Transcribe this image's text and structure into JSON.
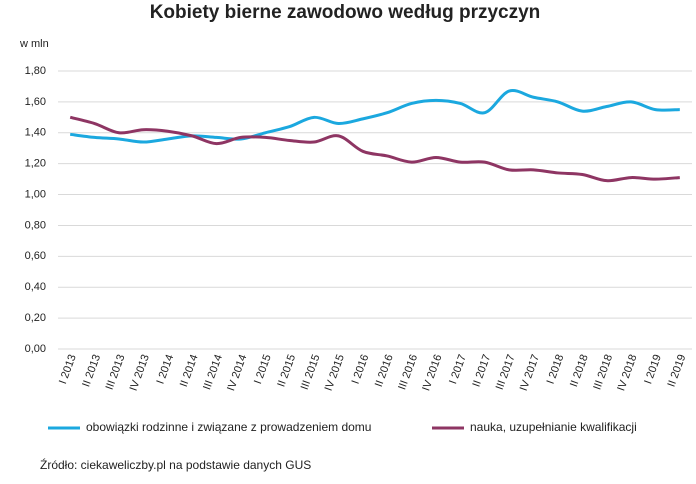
{
  "chart_data": {
    "type": "line",
    "title": "Kobiety bierne zawodowo według przyczyn",
    "y_label": "w mln",
    "source": "Źródło: ciekaweliczby.pl na podstawie danych GUS",
    "categories": [
      "I 2013",
      "II 2013",
      "III 2013",
      "IV 2013",
      "I 2014",
      "II 2014",
      "III 2014",
      "IV 2014",
      "I 2015",
      "II 2015",
      "III 2015",
      "IV 2015",
      "I 2016",
      "II 2016",
      "III 2016",
      "IV 2016",
      "I 2017",
      "II 2017",
      "III 2017",
      "IV 2017",
      "I 2018",
      "II 2018",
      "III 2018",
      "IV 2018",
      "I 2019",
      "II 2019"
    ],
    "series": [
      {
        "name": "obowiązki rodzinne i związane z prowadzeniem domu",
        "color": "#1ba8df",
        "values": [
          1.39,
          1.37,
          1.36,
          1.34,
          1.36,
          1.38,
          1.37,
          1.36,
          1.4,
          1.44,
          1.5,
          1.46,
          1.49,
          1.53,
          1.59,
          1.61,
          1.59,
          1.53,
          1.67,
          1.63,
          1.6,
          1.54,
          1.57,
          1.6,
          1.55,
          1.55
        ]
      },
      {
        "name": "nauka, uzupełnianie kwalifikacji",
        "color": "#8e3563",
        "values": [
          1.5,
          1.46,
          1.4,
          1.42,
          1.41,
          1.38,
          1.33,
          1.37,
          1.37,
          1.35,
          1.34,
          1.38,
          1.28,
          1.25,
          1.21,
          1.24,
          1.21,
          1.21,
          1.16,
          1.16,
          1.14,
          1.13,
          1.09,
          1.11,
          1.1,
          1.11
        ]
      }
    ],
    "ylim": [
      0,
      1.8
    ],
    "yticks": [
      {
        "value": 0,
        "label": "0,00"
      },
      {
        "value": 0.2,
        "label": "0,20"
      },
      {
        "value": 0.4,
        "label": "0,40"
      },
      {
        "value": 0.6,
        "label": "0,60"
      },
      {
        "value": 0.8,
        "label": "0,80"
      },
      {
        "value": 1.0,
        "label": "1,00"
      },
      {
        "value": 1.2,
        "label": "1,20"
      },
      {
        "value": 1.4,
        "label": "1,40"
      },
      {
        "value": 1.6,
        "label": "1,60"
      },
      {
        "value": 1.8,
        "label": "1,80"
      }
    ],
    "grid": true
  }
}
